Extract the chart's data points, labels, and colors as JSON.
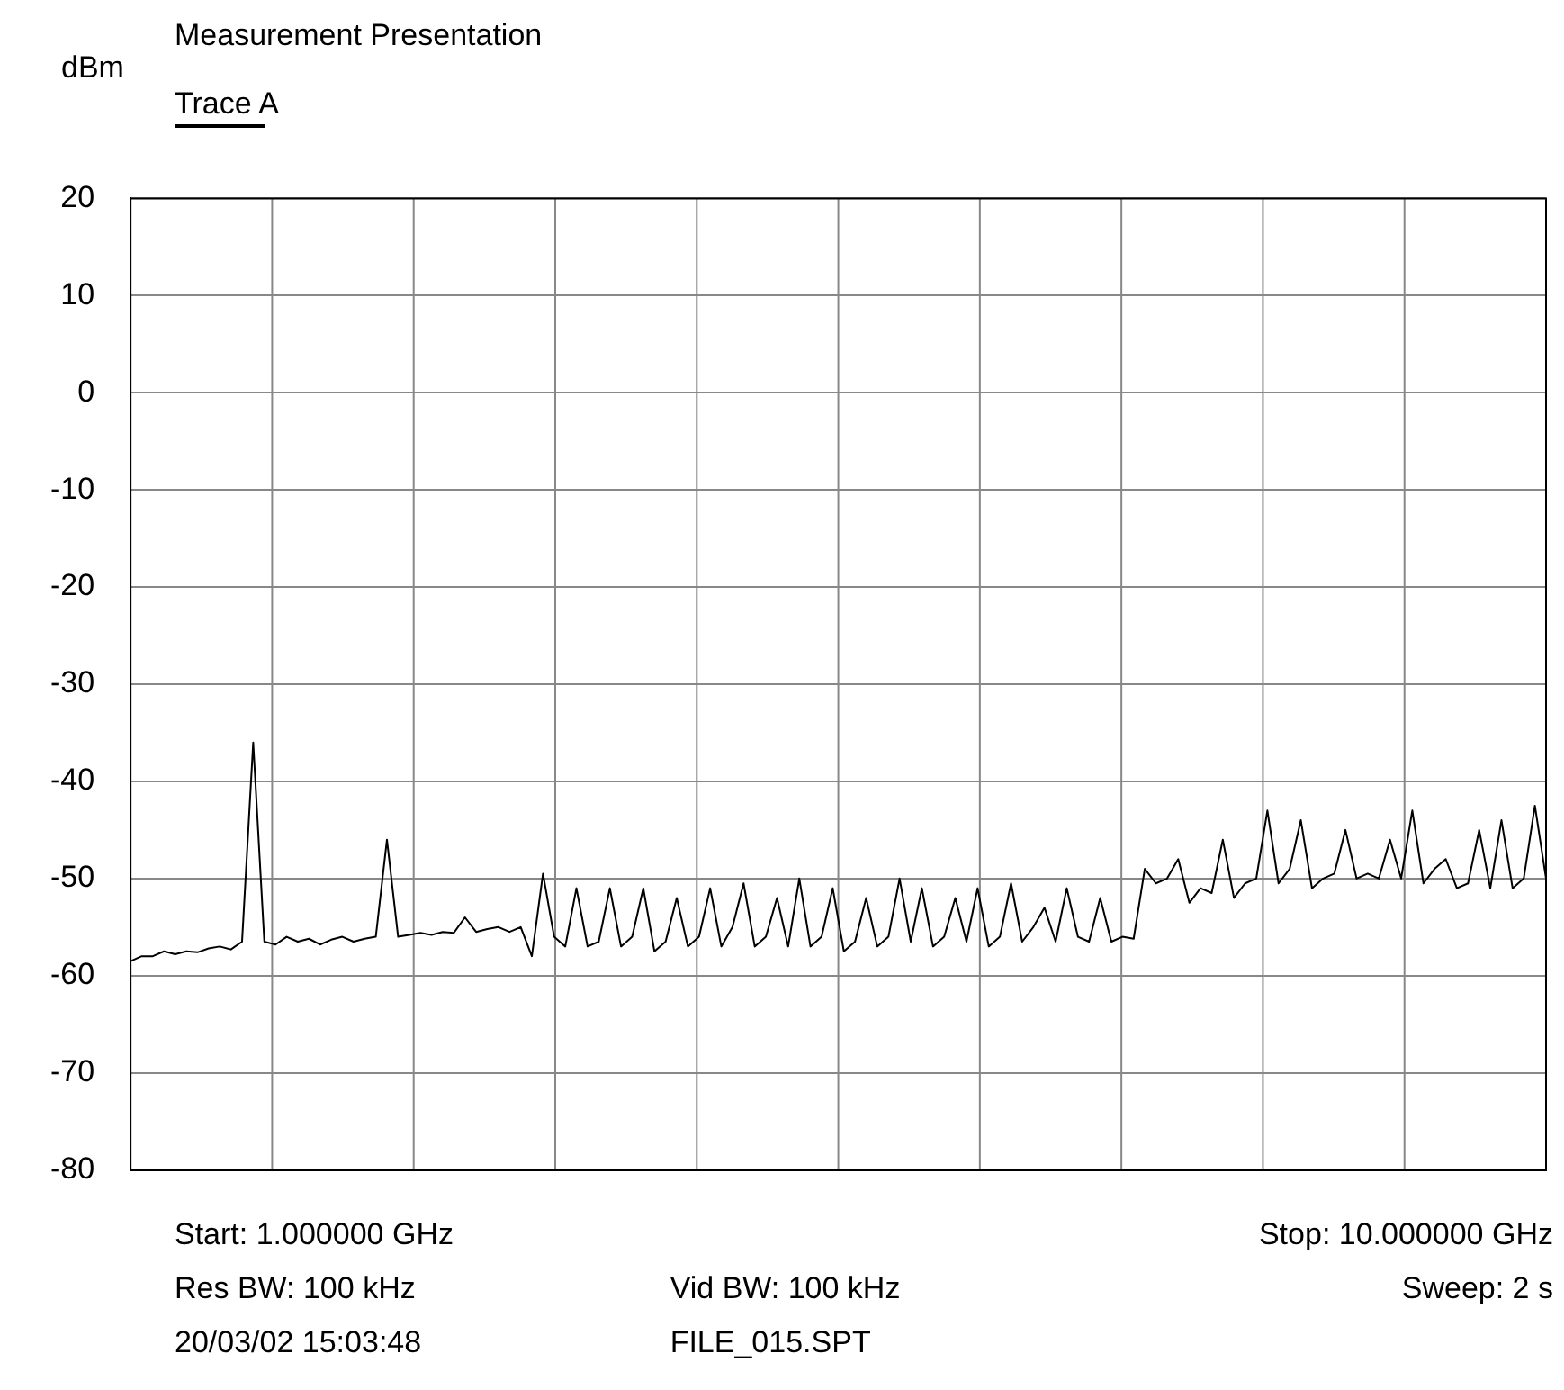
{
  "chart_data": {
    "type": "line",
    "title": "Measurement Presentation",
    "ylabel": "dBm",
    "legend": "top left",
    "grid": true,
    "marker": "none",
    "line_style": "solid",
    "tick_labels": "y",
    "categories": [
      null,
      null,
      null,
      null,
      null,
      null,
      null,
      null,
      null,
      null,
      null,
      null,
      null,
      null,
      null,
      null,
      null,
      null,
      null,
      null,
      null,
      null,
      null,
      null,
      null,
      null,
      null,
      null,
      null,
      null,
      null,
      null,
      null,
      null,
      null,
      null,
      null,
      null,
      null,
      null,
      null,
      null,
      null,
      null,
      null,
      null,
      null,
      null,
      null,
      null,
      null,
      null,
      null,
      null,
      null,
      null,
      null,
      null,
      null,
      null,
      null,
      null,
      null,
      null,
      null,
      null,
      null,
      null,
      null,
      null,
      null,
      null,
      null,
      null,
      null,
      null,
      null,
      null,
      null,
      null,
      null,
      null,
      null,
      null,
      null,
      null,
      null,
      null,
      null,
      null,
      null,
      null,
      null,
      null,
      null,
      null,
      null,
      null,
      null,
      null,
      null,
      null,
      null,
      null,
      null,
      null,
      null,
      null,
      null,
      null,
      null,
      null,
      null,
      null,
      null,
      null,
      null,
      null,
      null,
      null,
      null,
      null,
      null,
      null,
      null,
      null,
      null,
      null
    ],
    "ylim": [
      -80,
      20
    ],
    "yticks": [
      -80,
      -70,
      -60,
      -50,
      -40,
      -30,
      -20,
      -10,
      0,
      10,
      20
    ],
    "annotations": [
      "Start: 1.000000 GHz",
      "Stop: 10.000000 GHz",
      "Res BW: 100 kHz",
      "Vid BW: 100 kHz",
      "Sweep: 2 s",
      "20/03/02 15:03:48",
      "FILE_015.SPT"
    ],
    "series": [
      {
        "name": "Trace A",
        "color": "#000000",
        "values": [
          -58.5,
          -58,
          -58,
          -57.5,
          -57.8,
          -57.5,
          -57.6,
          -57.2,
          -57,
          -57.3,
          -56.5,
          -36,
          -56.5,
          -56.8,
          -56,
          -56.5,
          -56.2,
          -56.8,
          -56.3,
          -56,
          -56.5,
          -56.2,
          -56,
          -46,
          -56,
          -55.8,
          -55.6,
          -55.8,
          -55.5,
          -55.6,
          -54,
          -55.5,
          -55.2,
          -55,
          -55.5,
          -55,
          -58,
          -49.5,
          -56,
          -57,
          -51,
          -57,
          -56.5,
          -51,
          -57,
          -56,
          -51,
          -57.5,
          -56.5,
          -52,
          -57,
          -56,
          -51,
          -57,
          -55,
          -50.5,
          -57,
          -56,
          -52,
          -57,
          -50,
          -57,
          -56,
          -51,
          -57.5,
          -56.5,
          -52,
          -57,
          -56,
          -50,
          -56.5,
          -51,
          -57,
          -56,
          -52,
          -56.5,
          -51,
          -57,
          -56,
          -50.5,
          -56.5,
          -55,
          -53,
          -56.5,
          -51,
          -56,
          -56.5,
          -52,
          -56.5,
          -56,
          -56.2,
          -49,
          -50.5,
          -50,
          -48,
          -52.5,
          -51,
          -51.5,
          -46,
          -52,
          -50.5,
          -50,
          -43,
          -50.5,
          -49,
          -44,
          -51,
          -50,
          -49.5,
          -45,
          -50,
          -49.5,
          -50,
          -46,
          -50,
          -43,
          -50.5,
          -49,
          -48,
          -51,
          -50.5,
          -45,
          -51,
          -44,
          -51,
          -50,
          -42.5,
          -50
        ]
      }
    ]
  }
}
